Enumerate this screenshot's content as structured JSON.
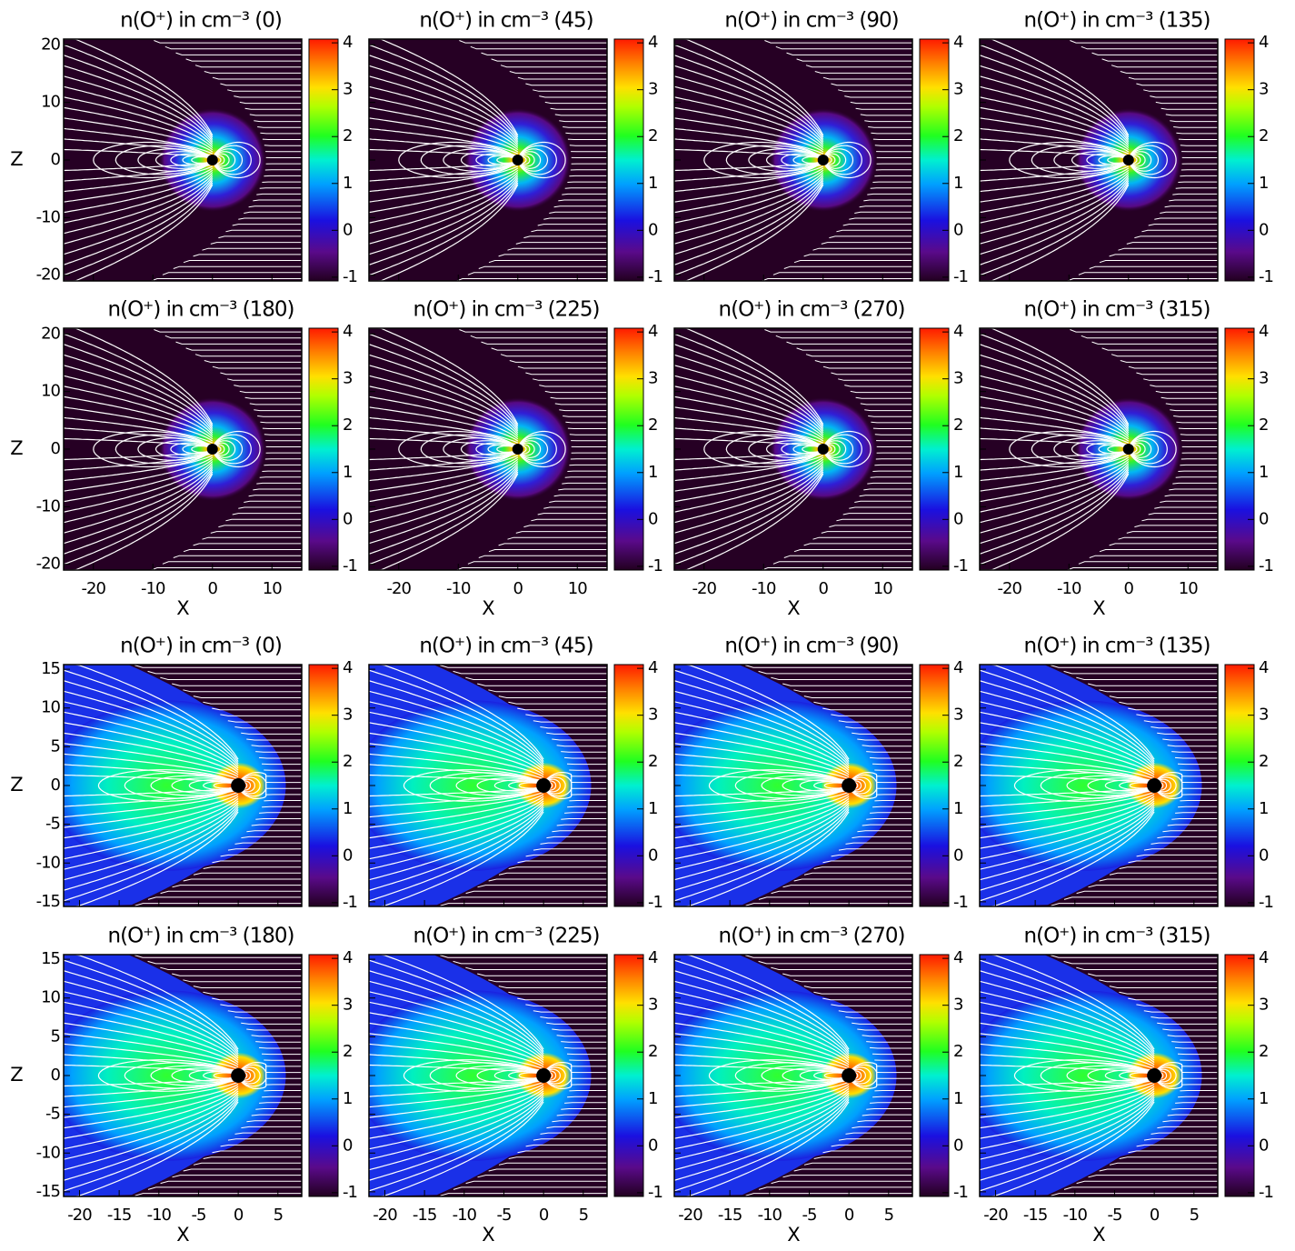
{
  "chart_data": [
    {
      "type": "streamplot",
      "title": "n(O⁺) in cm⁻³ (0)",
      "ylabel": "Z",
      "xlim": [
        -25,
        15
      ],
      "ylim": [
        -21,
        21
      ],
      "xticks": [
        -20,
        -10,
        0,
        10
      ],
      "yticks": [
        -20,
        -10,
        0,
        10,
        20
      ],
      "xtick_labels": false,
      "ytick_labels": true,
      "clim": [
        -1.08,
        4.08
      ],
      "cticks": [
        -1,
        0,
        1,
        2,
        3,
        4
      ]
    },
    {
      "type": "streamplot",
      "title": "n(O⁺) in cm⁻³ (45)",
      "xlim": [
        -25,
        15
      ],
      "ylim": [
        -21,
        21
      ],
      "xticks": [
        -20,
        -10,
        0,
        10
      ],
      "yticks": [
        -20,
        -10,
        0,
        10,
        20
      ],
      "xtick_labels": false,
      "ytick_labels": false,
      "clim": [
        -1.08,
        4.08
      ],
      "cticks": [
        -1,
        0,
        1,
        2,
        3,
        4
      ]
    },
    {
      "type": "streamplot",
      "title": "n(O⁺) in cm⁻³ (90)",
      "xlim": [
        -25,
        15
      ],
      "ylim": [
        -21,
        21
      ],
      "xticks": [
        -20,
        -10,
        0,
        10
      ],
      "yticks": [
        -20,
        -10,
        0,
        10,
        20
      ],
      "xtick_labels": false,
      "ytick_labels": false,
      "clim": [
        -1.08,
        4.08
      ],
      "cticks": [
        -1,
        0,
        1,
        2,
        3,
        4
      ]
    },
    {
      "type": "streamplot",
      "title": "n(O⁺) in cm⁻³ (135)",
      "xlim": [
        -25,
        15
      ],
      "ylim": [
        -21,
        21
      ],
      "xticks": [
        -20,
        -10,
        0,
        10
      ],
      "yticks": [
        -20,
        -10,
        0,
        10,
        20
      ],
      "xtick_labels": false,
      "ytick_labels": false,
      "clim": [
        -1.08,
        4.08
      ],
      "cticks": [
        -1,
        0,
        1,
        2,
        3,
        4
      ]
    },
    {
      "type": "streamplot",
      "title": "n(O⁺) in cm⁻³ (180)",
      "xlabel": "X",
      "ylabel": "Z",
      "xlim": [
        -25,
        15
      ],
      "ylim": [
        -21,
        21
      ],
      "xticks": [
        -20,
        -10,
        0,
        10
      ],
      "yticks": [
        -20,
        -10,
        0,
        10,
        20
      ],
      "xtick_labels": true,
      "ytick_labels": true,
      "clim": [
        -1.08,
        4.08
      ],
      "cticks": [
        -1,
        0,
        1,
        2,
        3,
        4
      ]
    },
    {
      "type": "streamplot",
      "title": "n(O⁺) in cm⁻³ (225)",
      "xlabel": "X",
      "xlim": [
        -25,
        15
      ],
      "ylim": [
        -21,
        21
      ],
      "xticks": [
        -20,
        -10,
        0,
        10
      ],
      "yticks": [
        -20,
        -10,
        0,
        10,
        20
      ],
      "xtick_labels": true,
      "ytick_labels": false,
      "clim": [
        -1.08,
        4.08
      ],
      "cticks": [
        -1,
        0,
        1,
        2,
        3,
        4
      ]
    },
    {
      "type": "streamplot",
      "title": "n(O⁺) in cm⁻³ (270)",
      "xlabel": "X",
      "xlim": [
        -25,
        15
      ],
      "ylim": [
        -21,
        21
      ],
      "xticks": [
        -20,
        -10,
        0,
        10
      ],
      "yticks": [
        -20,
        -10,
        0,
        10,
        20
      ],
      "xtick_labels": true,
      "ytick_labels": false,
      "clim": [
        -1.08,
        4.08
      ],
      "cticks": [
        -1,
        0,
        1,
        2,
        3,
        4
      ]
    },
    {
      "type": "streamplot",
      "title": "n(O⁺) in cm⁻³ (315)",
      "xlabel": "X",
      "xlim": [
        -25,
        15
      ],
      "ylim": [
        -21,
        21
      ],
      "xticks": [
        -20,
        -10,
        0,
        10
      ],
      "yticks": [
        -20,
        -10,
        0,
        10,
        20
      ],
      "xtick_labels": true,
      "ytick_labels": false,
      "clim": [
        -1.08,
        4.08
      ],
      "cticks": [
        -1,
        0,
        1,
        2,
        3,
        4
      ]
    },
    {
      "type": "streamplot",
      "title": "n(O⁺) in cm⁻³ (0)",
      "ylabel": "Z",
      "xlim": [
        -22,
        8
      ],
      "ylim": [
        -15.6,
        15.6
      ],
      "xticks": [
        -20,
        -15,
        -10,
        -5,
        0,
        5
      ],
      "yticks": [
        -15,
        -10,
        -5,
        0,
        5,
        10,
        15
      ],
      "xtick_labels": false,
      "ytick_labels": true,
      "clim": [
        -1.08,
        4.08
      ],
      "cticks": [
        -1,
        0,
        1,
        2,
        3,
        4
      ]
    },
    {
      "type": "streamplot",
      "title": "n(O⁺) in cm⁻³ (45)",
      "xlim": [
        -22,
        8
      ],
      "ylim": [
        -15.6,
        15.6
      ],
      "xticks": [
        -20,
        -15,
        -10,
        -5,
        0,
        5
      ],
      "yticks": [
        -15,
        -10,
        -5,
        0,
        5,
        10,
        15
      ],
      "xtick_labels": false,
      "ytick_labels": false,
      "clim": [
        -1.08,
        4.08
      ],
      "cticks": [
        -1,
        0,
        1,
        2,
        3,
        4
      ]
    },
    {
      "type": "streamplot",
      "title": "n(O⁺) in cm⁻³ (90)",
      "xlim": [
        -22,
        8
      ],
      "ylim": [
        -15.6,
        15.6
      ],
      "xticks": [
        -20,
        -15,
        -10,
        -5,
        0,
        5
      ],
      "yticks": [
        -15,
        -10,
        -5,
        0,
        5,
        10,
        15
      ],
      "xtick_labels": false,
      "ytick_labels": false,
      "clim": [
        -1.08,
        4.08
      ],
      "cticks": [
        -1,
        0,
        1,
        2,
        3,
        4
      ]
    },
    {
      "type": "streamplot",
      "title": "n(O⁺) in cm⁻³ (135)",
      "xlim": [
        -22,
        8
      ],
      "ylim": [
        -15.6,
        15.6
      ],
      "xticks": [
        -20,
        -15,
        -10,
        -5,
        0,
        5
      ],
      "yticks": [
        -15,
        -10,
        -5,
        0,
        5,
        10,
        15
      ],
      "xtick_labels": false,
      "ytick_labels": false,
      "clim": [
        -1.08,
        4.08
      ],
      "cticks": [
        -1,
        0,
        1,
        2,
        3,
        4
      ]
    },
    {
      "type": "streamplot",
      "title": "n(O⁺) in cm⁻³ (180)",
      "xlabel": "X",
      "ylabel": "Z",
      "xlim": [
        -22,
        8
      ],
      "ylim": [
        -15.6,
        15.6
      ],
      "xticks": [
        -20,
        -15,
        -10,
        -5,
        0,
        5
      ],
      "yticks": [
        -15,
        -10,
        -5,
        0,
        5,
        10,
        15
      ],
      "xtick_labels": true,
      "ytick_labels": true,
      "clim": [
        -1.08,
        4.08
      ],
      "cticks": [
        -1,
        0,
        1,
        2,
        3,
        4
      ]
    },
    {
      "type": "streamplot",
      "title": "n(O⁺) in cm⁻³ (225)",
      "xlabel": "X",
      "xlim": [
        -22,
        8
      ],
      "ylim": [
        -15.6,
        15.6
      ],
      "xticks": [
        -20,
        -15,
        -10,
        -5,
        0,
        5
      ],
      "yticks": [
        -15,
        -10,
        -5,
        0,
        5,
        10,
        15
      ],
      "xtick_labels": true,
      "ytick_labels": false,
      "clim": [
        -1.08,
        4.08
      ],
      "cticks": [
        -1,
        0,
        1,
        2,
        3,
        4
      ]
    },
    {
      "type": "streamplot",
      "title": "n(O⁺) in cm⁻³ (270)",
      "xlabel": "X",
      "xlim": [
        -22,
        8
      ],
      "ylim": [
        -15.6,
        15.6
      ],
      "xticks": [
        -20,
        -15,
        -10,
        -5,
        0,
        5
      ],
      "yticks": [
        -15,
        -10,
        -5,
        0,
        5,
        10,
        15
      ],
      "xtick_labels": true,
      "ytick_labels": false,
      "clim": [
        -1.08,
        4.08
      ],
      "cticks": [
        -1,
        0,
        1,
        2,
        3,
        4
      ]
    },
    {
      "type": "streamplot",
      "title": "n(O⁺) in cm⁻³ (315)",
      "xlabel": "X",
      "xlim": [
        -22,
        8
      ],
      "ylim": [
        -15.6,
        15.6
      ],
      "xticks": [
        -20,
        -15,
        -10,
        -5,
        0,
        5
      ],
      "yticks": [
        -15,
        -10,
        -5,
        0,
        5,
        10,
        15
      ],
      "xtick_labels": true,
      "ytick_labels": false,
      "clim": [
        -1.08,
        4.08
      ],
      "cticks": [
        -1,
        0,
        1,
        2,
        3,
        4
      ]
    }
  ]
}
